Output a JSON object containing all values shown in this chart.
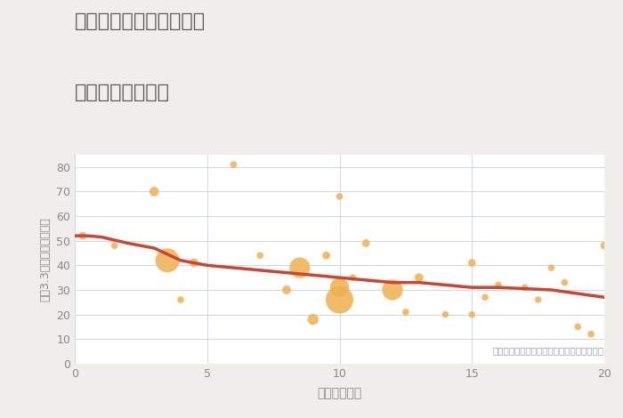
{
  "title_line1": "奈良県奈良市大柳生町の",
  "title_line2": "駅距離別土地価格",
  "xlabel": "駅距離（分）",
  "ylabel": "坪（3.3㎡）単価（万円）",
  "annotation": "円の大きさは、取引のあった物件面積を示す",
  "background_color": "#f0eeea",
  "plot_bg_color": "#ffffff",
  "xlim": [
    0,
    20
  ],
  "ylim": [
    0,
    85
  ],
  "xticks": [
    0,
    5,
    10,
    15,
    20
  ],
  "yticks": [
    0,
    10,
    20,
    30,
    40,
    50,
    60,
    70,
    80
  ],
  "scatter_x": [
    0.3,
    1.5,
    3,
    3.5,
    4,
    4.5,
    6,
    7,
    8,
    8.5,
    9,
    9.5,
    10,
    10,
    10,
    10.5,
    11,
    12,
    12.5,
    13,
    14,
    15,
    15,
    15.5,
    16,
    17,
    17.5,
    18,
    18.5,
    19,
    19.5,
    20
  ],
  "scatter_y": [
    52,
    48,
    70,
    42,
    26,
    41,
    81,
    44,
    30,
    39,
    18,
    44,
    68,
    31,
    26,
    35,
    49,
    30,
    21,
    35,
    20,
    41,
    20,
    27,
    32,
    31,
    26,
    39,
    33,
    15,
    12,
    48
  ],
  "scatter_size": [
    40,
    30,
    60,
    380,
    30,
    50,
    30,
    30,
    50,
    280,
    80,
    40,
    30,
    240,
    500,
    30,
    40,
    280,
    30,
    50,
    30,
    40,
    30,
    30,
    30,
    30,
    30,
    30,
    30,
    30,
    30,
    40
  ],
  "trend_x": [
    0,
    0.5,
    1,
    2,
    3,
    4,
    5,
    6,
    7,
    8,
    9,
    10,
    11,
    12,
    13,
    14,
    15,
    16,
    17,
    18,
    19,
    20
  ],
  "trend_y": [
    52,
    52,
    51.5,
    49,
    47,
    42,
    40,
    39,
    38,
    37,
    36,
    35,
    34,
    33,
    33,
    32,
    31,
    31,
    30.5,
    30,
    28.5,
    27
  ],
  "scatter_color": "#f0b050",
  "scatter_alpha": 0.85,
  "trend_color": "#cc4433",
  "trend_linewidth": 2.5,
  "grid_color": "#ccd8e8",
  "title_color": "#555555",
  "label_color": "#888888",
  "annot_color": "#9999bb",
  "tick_labelsize": 9,
  "xlabel_fontsize": 10,
  "ylabel_fontsize": 9
}
